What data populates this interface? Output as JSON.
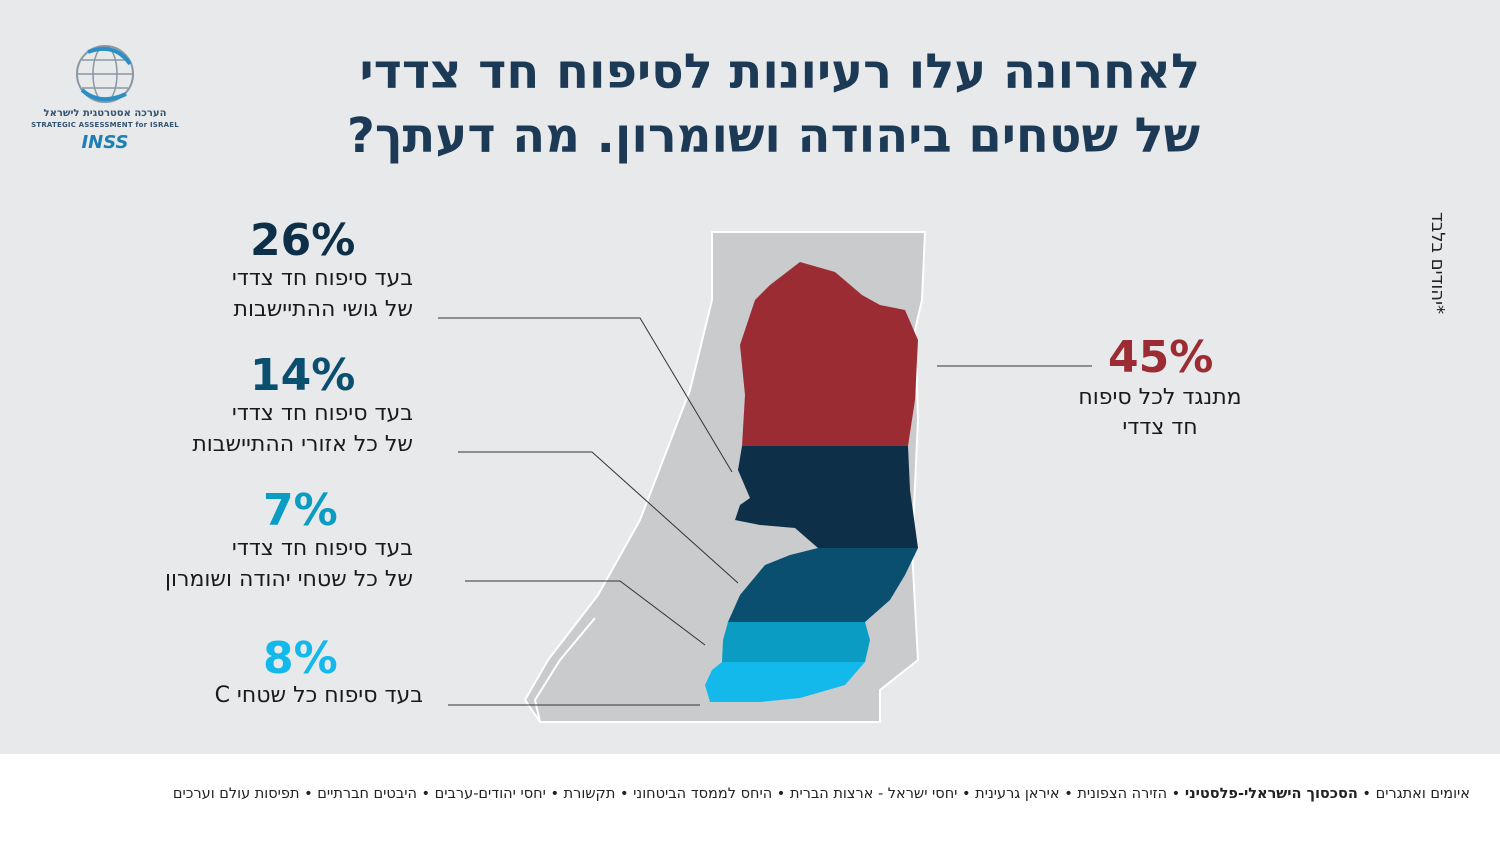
{
  "title": {
    "line1": "לאחרונה עלו רעיונות לסיפוח חד צדדי",
    "line2": "של שטחים ביהודה ושומרון. מה דעתך?"
  },
  "logo": {
    "hebrew": "הערכה אסטרטגית לישראל",
    "english": "STRATEGIC ASSESSMENT for ISRAEL",
    "acronym": "INSS"
  },
  "side_note": "*יהודים בלבד",
  "chart_data": {
    "type": "bar",
    "categories": [
      "מתנגד לכל סיפוח חד צדדי",
      "בעד סיפוח חד צדדי של גושי ההתיישבות",
      "בעד סיפוח חד צדדי של כל אזורי ההתיישבות",
      "בעד סיפוח חד צדדי של כל שטחי יהודה ושומרון",
      "בעד סיפוח כל שטחי C"
    ],
    "values": [
      45,
      26,
      14,
      7,
      8
    ],
    "unit": "%",
    "colors": [
      "#9b2c33",
      "#0d2f47",
      "#0b4f70",
      "#0b9cc4",
      "#13b9ea"
    ]
  },
  "labels": {
    "oppose": {
      "pct": "45%",
      "line1": "מתנגד לכל סיפוח",
      "line2": "חד צדדי"
    },
    "blocs": {
      "pct": "26%",
      "line1": "בעד סיפוח חד צדדי",
      "line2": "של גושי ההתיישבות"
    },
    "settlements": {
      "pct": "14%",
      "line1": "בעד סיפוח חד צדדי",
      "line2": "של כל אזורי ההתיישבות"
    },
    "all_ws": {
      "pct": "7%",
      "line1": "בעד סיפוח חד צדדי",
      "line2": "של כל שטחי יהודה ושומרון"
    },
    "area_c": {
      "pct": "8%",
      "line1": "בעד סיפוח כל שטחי C"
    }
  },
  "footer": {
    "items_before": "איומים ואתגרים • ",
    "highlight": "הסכסוך הישראלי-פלסטיני",
    "items_after": " • הזירה הצפונית • איראן גרעינית • יחסי ישראל - ארצות הברית • היחס לממסד הביטחוני • תקשורת • יחסי יהודים-ערבים • היבטים חברתיים • תפיסות עולם וערכים"
  }
}
